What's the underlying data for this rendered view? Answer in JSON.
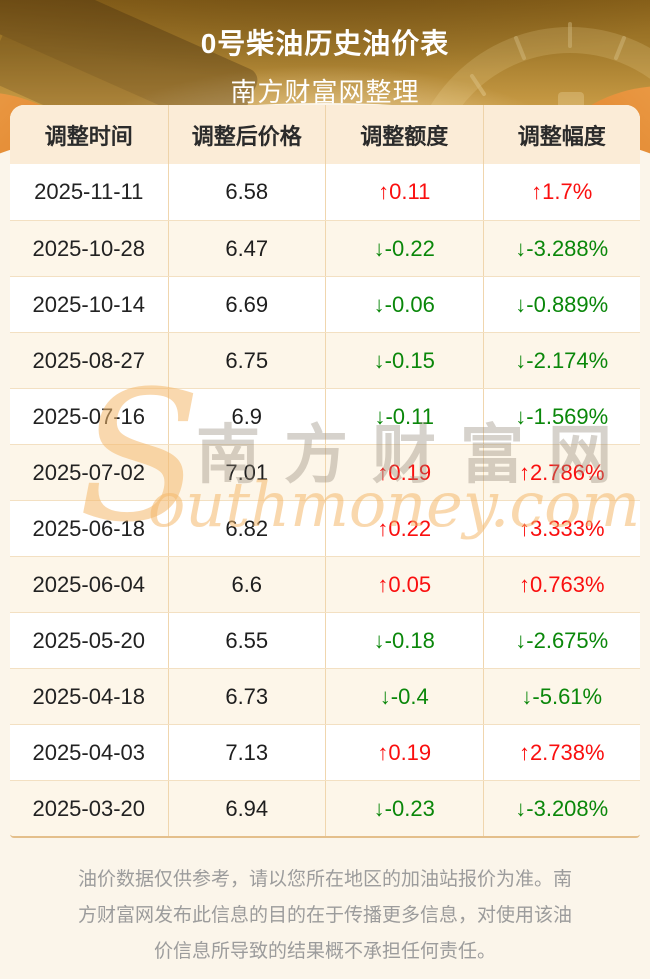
{
  "banner": {
    "title": "0号柴油历史油价表",
    "subtitle": "南方财富网整理"
  },
  "table": {
    "headers": [
      "调整时间",
      "调整后价格",
      "调整额度",
      "调整幅度"
    ],
    "rows": [
      {
        "date": "2025-11-11",
        "price": "6.58",
        "amount": "↑0.11",
        "rate": "↑1.7%",
        "direction": "up"
      },
      {
        "date": "2025-10-28",
        "price": "6.47",
        "amount": "↓-0.22",
        "rate": "↓-3.288%",
        "direction": "down"
      },
      {
        "date": "2025-10-14",
        "price": "6.69",
        "amount": "↓-0.06",
        "rate": "↓-0.889%",
        "direction": "down"
      },
      {
        "date": "2025-08-27",
        "price": "6.75",
        "amount": "↓-0.15",
        "rate": "↓-2.174%",
        "direction": "down"
      },
      {
        "date": "2025-07-16",
        "price": "6.9",
        "amount": "↓-0.11",
        "rate": "↓-1.569%",
        "direction": "down"
      },
      {
        "date": "2025-07-02",
        "price": "7.01",
        "amount": "↑0.19",
        "rate": "↑2.786%",
        "direction": "up"
      },
      {
        "date": "2025-06-18",
        "price": "6.82",
        "amount": "↑0.22",
        "rate": "↑3.333%",
        "direction": "up"
      },
      {
        "date": "2025-06-04",
        "price": "6.6",
        "amount": "↑0.05",
        "rate": "↑0.763%",
        "direction": "up"
      },
      {
        "date": "2025-05-20",
        "price": "6.55",
        "amount": "↓-0.18",
        "rate": "↓-2.675%",
        "direction": "down"
      },
      {
        "date": "2025-04-18",
        "price": "6.73",
        "amount": "↓-0.4",
        "rate": "↓-5.61%",
        "direction": "down"
      },
      {
        "date": "2025-04-03",
        "price": "7.13",
        "amount": "↑0.19",
        "rate": "↑2.738%",
        "direction": "up"
      },
      {
        "date": "2025-03-20",
        "price": "6.94",
        "amount": "↓-0.23",
        "rate": "↓-3.208%",
        "direction": "down"
      }
    ]
  },
  "watermark": {
    "cn": "南方财富网",
    "en_initial": "S",
    "en_rest": "outhmoney.com"
  },
  "footer": {
    "disclaimer": "油价数据仅供参考，请以您所在地区的加油站报价为准。南方财富网发布此信息的目的在于传播更多信息，对使用该油价信息所导致的结果概不承担任何责任。"
  },
  "colors": {
    "up": "#fa0f0f",
    "down": "#0a870a",
    "banner_gold": "#c79a44",
    "swoosh_orange": "#dc7a22",
    "header_bg": "#fbecd7",
    "row_alt_bg": "#fdf6e9",
    "page_bg": "#fbf5ea"
  },
  "icons": {
    "up_arrow": "↑",
    "down_arrow": "↓"
  }
}
